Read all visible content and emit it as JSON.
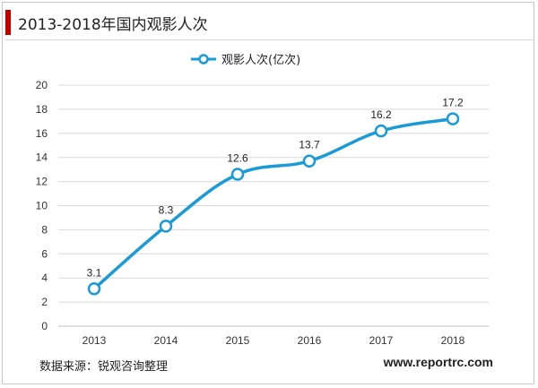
{
  "header": {
    "title": "2013-2018年国内观影人次"
  },
  "footer": {
    "source": "数据来源：锐观咨询整理",
    "website": "www.reportrc.com"
  },
  "colors": {
    "series": "#1a9bd7",
    "accent": "#c00000",
    "grid": "#d9d9d9"
  },
  "chart_data": {
    "type": "line",
    "title": "2013-2018年国内观影人次",
    "xlabel": "",
    "ylabel": "",
    "categories": [
      "2013",
      "2014",
      "2015",
      "2016",
      "2017",
      "2018"
    ],
    "series": [
      {
        "name": "观影人次(亿次)",
        "values": [
          3.1,
          8.3,
          12.6,
          13.7,
          16.2,
          17.2
        ]
      }
    ],
    "data_labels": [
      "3.1",
      "8.3",
      "12.6",
      "13.7",
      "16.2",
      "17.2"
    ],
    "ylim": [
      0,
      20
    ],
    "yticks": [
      "0",
      "2",
      "4",
      "6",
      "8",
      "10",
      "12",
      "14",
      "16",
      "18",
      "20"
    ],
    "grid": true,
    "legend": "top-center"
  }
}
